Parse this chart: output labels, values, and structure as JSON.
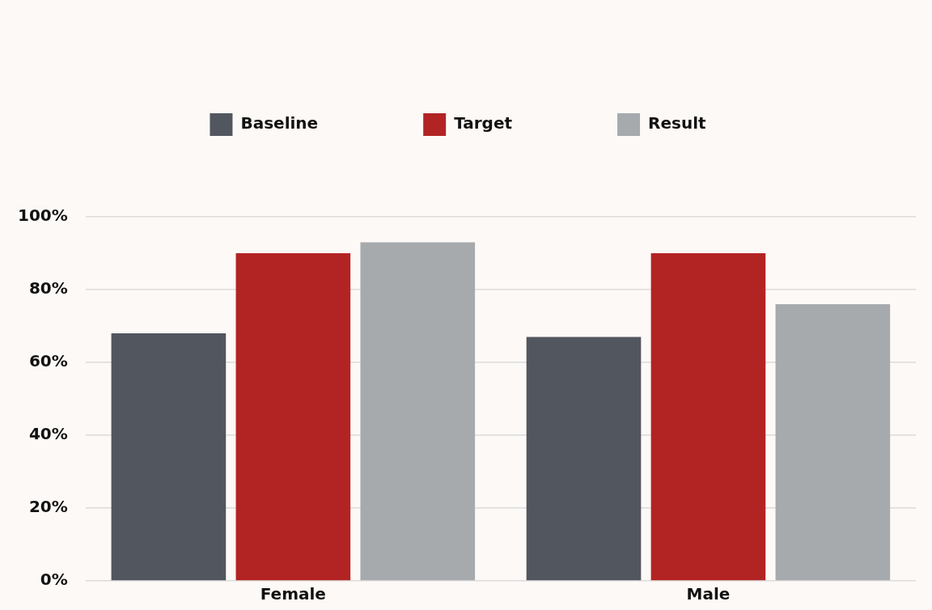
{
  "chart_data": {
    "type": "bar",
    "categories": [
      "Female",
      "Male"
    ],
    "series": [
      {
        "name": "Baseline",
        "color": "#52565e",
        "values": [
          68,
          67
        ]
      },
      {
        "name": "Target",
        "color": "#b22424",
        "values": [
          90,
          90
        ]
      },
      {
        "name": "Result",
        "color": "#a7aaad",
        "values": [
          93,
          76
        ]
      }
    ],
    "ylim": [
      0,
      100
    ],
    "yticks": [
      {
        "value": 0,
        "label": "0%"
      },
      {
        "value": 20,
        "label": "20%"
      },
      {
        "value": 40,
        "label": "40%"
      },
      {
        "value": 60,
        "label": "60%"
      },
      {
        "value": 80,
        "label": "80%"
      },
      {
        "value": 100,
        "label": "100%"
      }
    ],
    "grid": "y",
    "legend": "top"
  }
}
